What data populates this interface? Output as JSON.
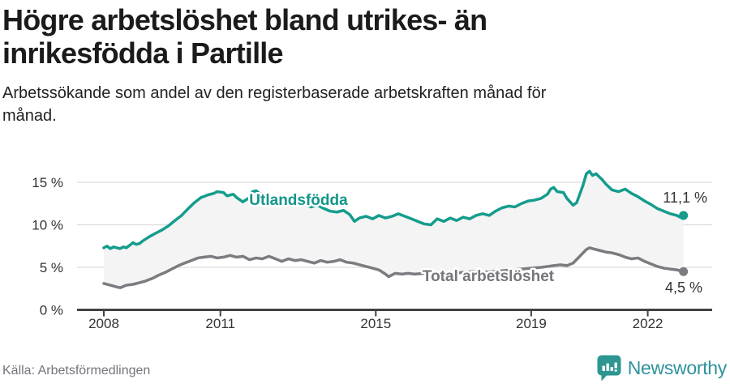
{
  "header": {
    "title_lines": [
      "Högre arbetslöshet bland utrikes- än",
      "inrikesfödda i Partille"
    ],
    "subtitle_lines": [
      "Arbetssökande som andel av den registerbaserade arbetskraften månad för",
      "månad."
    ]
  },
  "footer": {
    "source": "Källa: Arbetsförmedlingen",
    "brand": "Newsworthy",
    "logo_icon": "newsworthy-speech-bubble-bar-chart-icon",
    "brand_color": "#2e929b"
  },
  "chart_data": {
    "type": "line",
    "title": "Högre arbetslöshet bland utrikes- än inrikesfödda i Partille",
    "subtitle": "Arbetssökande som andel av den registerbaserade arbetskraften månad för månad.",
    "unit": "%",
    "x_range": [
      2008.0,
      2022.92
    ],
    "ylim": [
      0,
      17
    ],
    "grid": true,
    "legend_position": "inline-labels",
    "colors": {
      "grid": "#dcdcdc",
      "axis": "#424242",
      "tick_label": "#333333",
      "end_label": "#333333",
      "band_fill": "#f4f4f4"
    },
    "yticks": [
      {
        "value": 0,
        "label": "0 %"
      },
      {
        "value": 5,
        "label": "5 %"
      },
      {
        "value": 10,
        "label": "10 %"
      },
      {
        "value": 15,
        "label": "15 %"
      }
    ],
    "xticks": [
      {
        "year": 2008,
        "label": "2008"
      },
      {
        "year": 2011,
        "label": "2011"
      },
      {
        "year": 2015,
        "label": "2015"
      },
      {
        "year": 2019,
        "label": "2019"
      },
      {
        "year": 2022,
        "label": "2022"
      }
    ],
    "series": [
      {
        "name": "Utlandsfödda",
        "color": "#149c8c",
        "label_color": "#12968a",
        "end_value": 11.1,
        "end_label": "11,1 %",
        "points": [
          [
            2008.0,
            7.3
          ],
          [
            2008.08,
            7.5
          ],
          [
            2008.17,
            7.2
          ],
          [
            2008.25,
            7.4
          ],
          [
            2008.33,
            7.3
          ],
          [
            2008.42,
            7.2
          ],
          [
            2008.5,
            7.4
          ],
          [
            2008.58,
            7.3
          ],
          [
            2008.67,
            7.6
          ],
          [
            2008.75,
            7.9
          ],
          [
            2008.83,
            7.7
          ],
          [
            2008.92,
            7.8
          ],
          [
            2009.0,
            8.1
          ],
          [
            2009.17,
            8.6
          ],
          [
            2009.33,
            9.0
          ],
          [
            2009.5,
            9.4
          ],
          [
            2009.67,
            9.9
          ],
          [
            2009.83,
            10.5
          ],
          [
            2010.0,
            11.1
          ],
          [
            2010.17,
            11.9
          ],
          [
            2010.33,
            12.6
          ],
          [
            2010.5,
            13.2
          ],
          [
            2010.67,
            13.5
          ],
          [
            2010.83,
            13.7
          ],
          [
            2010.92,
            13.9
          ],
          [
            2011.08,
            13.8
          ],
          [
            2011.17,
            13.4
          ],
          [
            2011.33,
            13.6
          ],
          [
            2011.42,
            13.2
          ],
          [
            2011.58,
            12.7
          ],
          [
            2011.75,
            13.2
          ],
          [
            2011.83,
            13.9
          ],
          [
            2011.92,
            14.0
          ],
          [
            2012.0,
            13.7
          ],
          [
            2012.17,
            13.5
          ],
          [
            2012.33,
            13.1
          ],
          [
            2012.5,
            13.3
          ],
          [
            2012.67,
            12.9
          ],
          [
            2012.83,
            12.6
          ],
          [
            2013.0,
            12.8
          ],
          [
            2013.17,
            12.4
          ],
          [
            2013.33,
            12.1
          ],
          [
            2013.5,
            12.3
          ],
          [
            2013.67,
            11.9
          ],
          [
            2013.83,
            11.6
          ],
          [
            2014.0,
            11.5
          ],
          [
            2014.17,
            11.7
          ],
          [
            2014.33,
            11.2
          ],
          [
            2014.45,
            10.4
          ],
          [
            2014.58,
            10.8
          ],
          [
            2014.75,
            11.0
          ],
          [
            2014.92,
            10.7
          ],
          [
            2015.08,
            11.1
          ],
          [
            2015.25,
            10.8
          ],
          [
            2015.42,
            11.0
          ],
          [
            2015.58,
            11.3
          ],
          [
            2015.75,
            11.0
          ],
          [
            2015.92,
            10.7
          ],
          [
            2016.08,
            10.4
          ],
          [
            2016.25,
            10.1
          ],
          [
            2016.42,
            10.0
          ],
          [
            2016.58,
            10.7
          ],
          [
            2016.75,
            10.4
          ],
          [
            2016.92,
            10.8
          ],
          [
            2017.08,
            10.5
          ],
          [
            2017.25,
            10.9
          ],
          [
            2017.42,
            10.7
          ],
          [
            2017.58,
            11.1
          ],
          [
            2017.75,
            11.3
          ],
          [
            2017.92,
            11.1
          ],
          [
            2018.08,
            11.6
          ],
          [
            2018.25,
            12.0
          ],
          [
            2018.42,
            12.2
          ],
          [
            2018.58,
            12.1
          ],
          [
            2018.75,
            12.5
          ],
          [
            2018.92,
            12.8
          ],
          [
            2019.08,
            12.9
          ],
          [
            2019.25,
            13.1
          ],
          [
            2019.42,
            13.6
          ],
          [
            2019.5,
            14.2
          ],
          [
            2019.58,
            14.4
          ],
          [
            2019.67,
            13.9
          ],
          [
            2019.83,
            13.8
          ],
          [
            2019.92,
            13.1
          ],
          [
            2020.08,
            12.3
          ],
          [
            2020.17,
            12.6
          ],
          [
            2020.33,
            14.6
          ],
          [
            2020.42,
            16.0
          ],
          [
            2020.5,
            16.3
          ],
          [
            2020.58,
            15.8
          ],
          [
            2020.67,
            16.0
          ],
          [
            2020.83,
            15.3
          ],
          [
            2020.92,
            14.8
          ],
          [
            2021.08,
            14.1
          ],
          [
            2021.25,
            13.9
          ],
          [
            2021.42,
            14.2
          ],
          [
            2021.58,
            13.7
          ],
          [
            2021.75,
            13.3
          ],
          [
            2021.92,
            12.8
          ],
          [
            2022.08,
            12.4
          ],
          [
            2022.25,
            11.9
          ],
          [
            2022.42,
            11.6
          ],
          [
            2022.58,
            11.3
          ],
          [
            2022.75,
            11.1
          ],
          [
            2022.83,
            10.9
          ],
          [
            2022.92,
            11.1
          ]
        ]
      },
      {
        "name": "Total arbetslöshet",
        "color": "#7b7b80",
        "label_color": "#75757b",
        "end_value": 4.5,
        "end_label": "4,5 %",
        "points": [
          [
            2008.0,
            3.1
          ],
          [
            2008.17,
            2.9
          ],
          [
            2008.33,
            2.7
          ],
          [
            2008.42,
            2.6
          ],
          [
            2008.58,
            2.9
          ],
          [
            2008.75,
            3.0
          ],
          [
            2008.92,
            3.2
          ],
          [
            2009.08,
            3.4
          ],
          [
            2009.25,
            3.7
          ],
          [
            2009.42,
            4.1
          ],
          [
            2009.58,
            4.4
          ],
          [
            2009.75,
            4.8
          ],
          [
            2009.92,
            5.2
          ],
          [
            2010.08,
            5.5
          ],
          [
            2010.25,
            5.8
          ],
          [
            2010.42,
            6.1
          ],
          [
            2010.58,
            6.2
          ],
          [
            2010.75,
            6.3
          ],
          [
            2010.92,
            6.1
          ],
          [
            2011.08,
            6.2
          ],
          [
            2011.25,
            6.4
          ],
          [
            2011.42,
            6.2
          ],
          [
            2011.58,
            6.3
          ],
          [
            2011.75,
            5.9
          ],
          [
            2011.92,
            6.1
          ],
          [
            2012.08,
            6.0
          ],
          [
            2012.25,
            6.3
          ],
          [
            2012.42,
            6.0
          ],
          [
            2012.58,
            5.7
          ],
          [
            2012.75,
            6.0
          ],
          [
            2012.92,
            5.8
          ],
          [
            2013.08,
            5.9
          ],
          [
            2013.25,
            5.7
          ],
          [
            2013.42,
            5.5
          ],
          [
            2013.58,
            5.8
          ],
          [
            2013.75,
            5.6
          ],
          [
            2013.92,
            5.7
          ],
          [
            2014.08,
            5.9
          ],
          [
            2014.25,
            5.6
          ],
          [
            2014.42,
            5.5
          ],
          [
            2014.58,
            5.3
          ],
          [
            2014.75,
            5.1
          ],
          [
            2014.92,
            4.9
          ],
          [
            2015.08,
            4.7
          ],
          [
            2015.25,
            4.2
          ],
          [
            2015.33,
            3.9
          ],
          [
            2015.5,
            4.3
          ],
          [
            2015.67,
            4.2
          ],
          [
            2015.83,
            4.3
          ],
          [
            2016.0,
            4.2
          ],
          [
            2016.25,
            4.3
          ],
          [
            2016.5,
            4.2
          ],
          [
            2016.75,
            4.4
          ],
          [
            2017.0,
            4.3
          ],
          [
            2017.25,
            4.4
          ],
          [
            2017.5,
            4.5
          ],
          [
            2017.75,
            4.4
          ],
          [
            2018.0,
            4.5
          ],
          [
            2018.25,
            4.6
          ],
          [
            2018.5,
            4.7
          ],
          [
            2018.75,
            4.8
          ],
          [
            2019.0,
            4.9
          ],
          [
            2019.25,
            5.0
          ],
          [
            2019.42,
            5.1
          ],
          [
            2019.58,
            5.2
          ],
          [
            2019.75,
            5.3
          ],
          [
            2019.92,
            5.2
          ],
          [
            2020.08,
            5.5
          ],
          [
            2020.25,
            6.3
          ],
          [
            2020.42,
            7.1
          ],
          [
            2020.5,
            7.3
          ],
          [
            2020.58,
            7.2
          ],
          [
            2020.75,
            7.0
          ],
          [
            2020.92,
            6.8
          ],
          [
            2021.08,
            6.7
          ],
          [
            2021.25,
            6.5
          ],
          [
            2021.42,
            6.2
          ],
          [
            2021.58,
            6.0
          ],
          [
            2021.75,
            6.1
          ],
          [
            2021.92,
            5.7
          ],
          [
            2022.08,
            5.4
          ],
          [
            2022.25,
            5.1
          ],
          [
            2022.42,
            4.9
          ],
          [
            2022.58,
            4.8
          ],
          [
            2022.75,
            4.7
          ],
          [
            2022.92,
            4.5
          ]
        ]
      }
    ]
  }
}
